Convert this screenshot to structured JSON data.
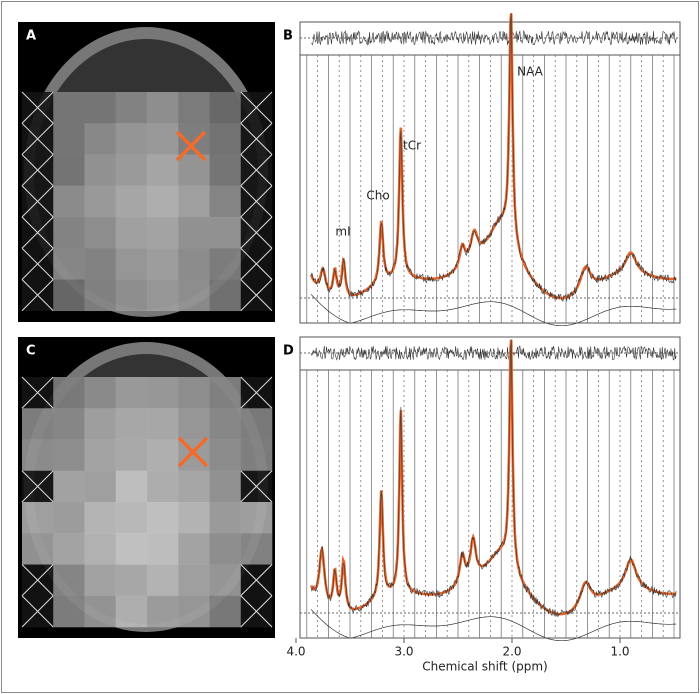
{
  "panels": [
    {
      "label": "A"
    },
    {
      "label": "B",
      "peaks": [
        "mI",
        "Cho",
        "tCr",
        "NAA"
      ]
    },
    {
      "label": "C"
    },
    {
      "label": "D"
    }
  ],
  "x_axis": {
    "label": "Chemical shift (ppm)",
    "ticks": [
      {
        "value": 4,
        "label": "4.0"
      },
      {
        "value": 3,
        "label": "3.0"
      },
      {
        "value": 2,
        "label": "2.0"
      },
      {
        "value": 1,
        "label": "1.0"
      }
    ]
  }
}
